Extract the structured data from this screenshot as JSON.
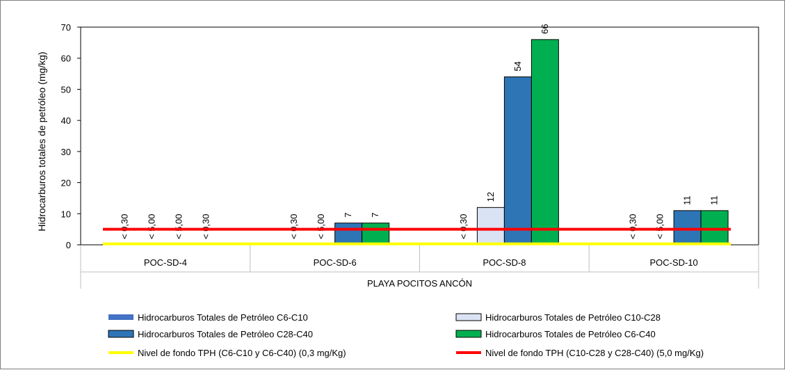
{
  "chart_data": {
    "type": "bar",
    "title": "",
    "ylabel": "Hidrocarburos totales de petróleo (mg/kg)",
    "xlabel": "PLAYA POCITOS ANCÓN",
    "ylim": [
      0,
      70
    ],
    "yticks": [
      0,
      10,
      20,
      30,
      40,
      50,
      60,
      70
    ],
    "categories": [
      "POC-SD-4",
      "POC-SD-6",
      "POC-SD-8",
      "POC-SD-10"
    ],
    "series": [
      {
        "name": "Hidrocarburos Totales de Petróleo C6-C10",
        "color": "#4472c4",
        "values": [
          null,
          null,
          null,
          null
        ],
        "labels": [
          "< 0,30",
          "< 0,30",
          "< 0,30",
          "< 0,30"
        ]
      },
      {
        "name": "Hidrocarburos Totales de Petróleo C10-C28",
        "color": "#dae3f3",
        "values": [
          null,
          null,
          12,
          null
        ],
        "labels": [
          "< 5,00",
          "< 5,00",
          "12",
          "< 5,00"
        ]
      },
      {
        "name": "Hidrocarburos Totales de Petróleo C28-C40",
        "color": "#2e75b6",
        "values": [
          null,
          7,
          54,
          11
        ],
        "labels": [
          "< 5,00",
          "7",
          "54",
          "11"
        ]
      },
      {
        "name": "Hidrocarburos Totales de Petróleo C6-C40",
        "color": "#00b050",
        "values": [
          null,
          7,
          66,
          11
        ],
        "labels": [
          "< 0,30",
          "7",
          "66",
          "11"
        ]
      }
    ],
    "reference_lines": [
      {
        "name": "Nivel de fondo TPH (C6-C10 y C6-C40) (0,3 mg/Kg)",
        "value": 0.3,
        "color": "#ffff00"
      },
      {
        "name": "Nivel de fondo TPH (C10-C28 y C28-C40) (5,0 mg/Kg)",
        "value": 5.0,
        "color": "#ff0000"
      }
    ],
    "grid": false,
    "legend_position": "bottom"
  }
}
